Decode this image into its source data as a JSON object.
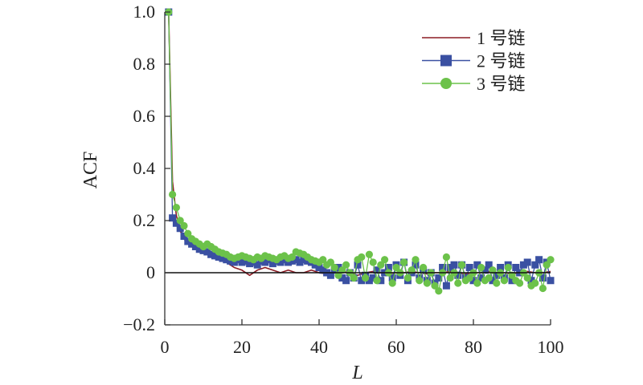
{
  "chart_data": {
    "type": "line",
    "xlabel": "L",
    "ylabel": "ACF",
    "xlim": [
      0,
      100
    ],
    "ylim": [
      -0.2,
      1.0
    ],
    "xticks": [
      0,
      20,
      40,
      60,
      80,
      100
    ],
    "xtick_labels": [
      "0",
      "20",
      "40",
      "60",
      "80",
      "100"
    ],
    "yticks": [
      -0.2,
      0,
      0.2,
      0.4,
      0.6,
      0.8,
      1.0
    ],
    "ytick_labels": [
      "−0.2",
      "0",
      "0.2",
      "0.4",
      "0.6",
      "0.8",
      "1.0"
    ],
    "reference_line": 0,
    "legend_position": "top-right",
    "series": [
      {
        "name": "1 号链",
        "color": "#8b1c24",
        "marker": "none",
        "x": [
          1,
          2,
          3,
          4,
          5,
          6,
          7,
          8,
          9,
          10,
          11,
          12,
          13,
          14,
          15,
          16,
          17,
          18,
          19,
          20,
          22,
          24,
          26,
          28,
          30,
          32,
          34,
          36,
          38,
          40,
          42,
          44,
          46,
          48,
          50,
          52,
          54,
          56,
          58,
          60,
          62,
          64,
          66,
          68,
          70,
          72,
          74,
          76,
          78,
          80,
          82,
          84,
          86,
          88,
          90,
          92,
          94,
          96,
          98,
          100
        ],
        "values": [
          1.0,
          0.35,
          0.22,
          0.16,
          0.13,
          0.11,
          0.1,
          0.09,
          0.085,
          0.075,
          0.07,
          0.06,
          0.06,
          0.05,
          0.045,
          0.04,
          0.03,
          0.02,
          0.015,
          0.01,
          -0.01,
          0.01,
          0.02,
          0.01,
          0.0,
          0.01,
          0.0,
          0.0,
          0.01,
          0.0,
          -0.005,
          0.0,
          0.005,
          0.0,
          -0.01,
          0.0,
          0.005,
          0.0,
          -0.005,
          0.0,
          0.0,
          0.005,
          0.0,
          -0.005,
          0.0,
          0.0,
          0.005,
          0.0,
          -0.005,
          0.0,
          0.0,
          0.005,
          0.0,
          0.0,
          -0.005,
          0.0,
          0.005,
          0.0,
          0.0,
          0.005
        ]
      },
      {
        "name": "2 号链",
        "color": "#3a50a2",
        "marker": "square",
        "x": [
          1,
          2,
          3,
          4,
          5,
          6,
          7,
          8,
          9,
          10,
          11,
          12,
          13,
          14,
          15,
          16,
          17,
          18,
          19,
          20,
          21,
          22,
          23,
          24,
          25,
          26,
          27,
          28,
          29,
          30,
          31,
          32,
          33,
          34,
          35,
          36,
          37,
          38,
          39,
          40,
          41,
          42,
          43,
          44,
          45,
          46,
          47,
          48,
          49,
          50,
          51,
          52,
          53,
          54,
          55,
          56,
          57,
          58,
          59,
          60,
          61,
          62,
          63,
          64,
          65,
          66,
          67,
          68,
          69,
          70,
          71,
          72,
          73,
          74,
          75,
          76,
          77,
          78,
          79,
          80,
          81,
          82,
          83,
          84,
          85,
          86,
          87,
          88,
          89,
          90,
          91,
          92,
          93,
          94,
          95,
          96,
          97,
          98,
          99,
          100
        ],
        "values": [
          1.0,
          0.21,
          0.19,
          0.17,
          0.14,
          0.12,
          0.11,
          0.1,
          0.09,
          0.085,
          0.08,
          0.07,
          0.065,
          0.06,
          0.055,
          0.05,
          0.045,
          0.04,
          0.05,
          0.04,
          0.045,
          0.035,
          0.04,
          0.03,
          0.045,
          0.04,
          0.05,
          0.035,
          0.045,
          0.04,
          0.05,
          0.04,
          0.045,
          0.05,
          0.04,
          0.05,
          0.045,
          0.04,
          0.03,
          0.02,
          0.01,
          0.0,
          -0.01,
          0.01,
          0.02,
          -0.02,
          -0.03,
          0.0,
          -0.02,
          0.03,
          -0.03,
          -0.01,
          -0.03,
          -0.02,
          0.01,
          -0.03,
          0.0,
          0.02,
          -0.02,
          0.03,
          -0.01,
          0.04,
          -0.03,
          0.0,
          0.03,
          -0.02,
          0.01,
          -0.03,
          0.0,
          -0.04,
          -0.02,
          0.02,
          -0.05,
          0.02,
          0.03,
          -0.01,
          0.03,
          -0.02,
          0.02,
          -0.03,
          0.03,
          -0.02,
          0.01,
          0.03,
          -0.03,
          -0.01,
          0.02,
          -0.02,
          0.03,
          -0.03,
          0.02,
          0.0,
          0.03,
          0.04,
          -0.03,
          0.03,
          0.05,
          -0.02,
          0.04,
          -0.03
        ]
      },
      {
        "name": "3 号链",
        "color": "#6cc24a",
        "marker": "circle",
        "x": [
          1,
          2,
          3,
          4,
          5,
          6,
          7,
          8,
          9,
          10,
          11,
          12,
          13,
          14,
          15,
          16,
          17,
          18,
          19,
          20,
          21,
          22,
          23,
          24,
          25,
          26,
          27,
          28,
          29,
          30,
          31,
          32,
          33,
          34,
          35,
          36,
          37,
          38,
          39,
          40,
          41,
          42,
          43,
          44,
          45,
          46,
          47,
          48,
          49,
          50,
          51,
          52,
          53,
          54,
          55,
          56,
          57,
          58,
          59,
          60,
          61,
          62,
          63,
          64,
          65,
          66,
          67,
          68,
          69,
          70,
          71,
          72,
          73,
          74,
          75,
          76,
          77,
          78,
          79,
          80,
          81,
          82,
          83,
          84,
          85,
          86,
          87,
          88,
          89,
          90,
          91,
          92,
          93,
          94,
          95,
          96,
          97,
          98,
          99,
          100
        ],
        "values": [
          1.0,
          0.3,
          0.25,
          0.2,
          0.18,
          0.15,
          0.13,
          0.12,
          0.11,
          0.1,
          0.11,
          0.1,
          0.09,
          0.08,
          0.075,
          0.07,
          0.06,
          0.055,
          0.06,
          0.065,
          0.06,
          0.055,
          0.05,
          0.06,
          0.055,
          0.065,
          0.06,
          0.055,
          0.05,
          0.06,
          0.065,
          0.055,
          0.06,
          0.08,
          0.075,
          0.07,
          0.06,
          0.05,
          0.045,
          0.04,
          0.05,
          0.03,
          0.04,
          0.02,
          -0.01,
          0.01,
          0.03,
          0.0,
          -0.02,
          0.05,
          0.06,
          -0.02,
          0.07,
          0.04,
          -0.03,
          0.03,
          0.05,
          0.0,
          -0.04,
          0.02,
          0.0,
          0.04,
          -0.02,
          0.01,
          0.05,
          -0.03,
          0.02,
          -0.04,
          0.0,
          -0.05,
          -0.07,
          0.0,
          0.06,
          -0.02,
          0.0,
          -0.04,
          0.03,
          -0.03,
          -0.02,
          0.0,
          -0.04,
          0.02,
          -0.03,
          -0.02,
          0.01,
          -0.04,
          0.0,
          -0.03,
          0.02,
          -0.01,
          -0.03,
          -0.04,
          0.0,
          -0.02,
          -0.05,
          -0.04,
          0.0,
          -0.06,
          0.03,
          0.05
        ]
      }
    ]
  }
}
